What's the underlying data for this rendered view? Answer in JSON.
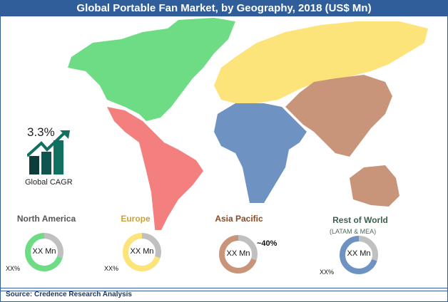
{
  "title": "Global Portable Fan Market, by Geography, 2018 (US$ Mn)",
  "cagr": {
    "value": "3.3%",
    "label": "Global CAGR",
    "icon": "growth-chart-icon",
    "color": "#0f6b5c"
  },
  "regions": [
    {
      "name": "North America",
      "subtitle": "",
      "center": "XX Mn",
      "share": "XX%",
      "color": "#6ddc85",
      "label_color": "#555555",
      "fill_fraction": 0.7
    },
    {
      "name": "Europe",
      "subtitle": "",
      "center": "XX Mn",
      "share": "XX%",
      "color": "#fde47a",
      "label_color": "#c9a23a",
      "fill_fraction": 0.7
    },
    {
      "name": "Asia Pacific",
      "subtitle": "",
      "center": "XX Mn",
      "share": "~40%",
      "color": "#c9957a",
      "label_color": "#8a4a2a",
      "fill_fraction": 0.7
    },
    {
      "name": "Rest of World",
      "subtitle": "(LATAM & MEA)",
      "center": "XX Mn",
      "share": "XX%",
      "color": "#6e93c2",
      "label_color": "#3f5f4f",
      "fill_fraction": 0.7
    }
  ],
  "map_colors": {
    "north_america": "#6ddc85",
    "latin_america": "#f47f7f",
    "europe_russia": "#fde47a",
    "africa_middle_east": "#6e93c2",
    "asia_pacific": "#c9957a"
  },
  "source": "Source: Credence Research Analysis"
}
